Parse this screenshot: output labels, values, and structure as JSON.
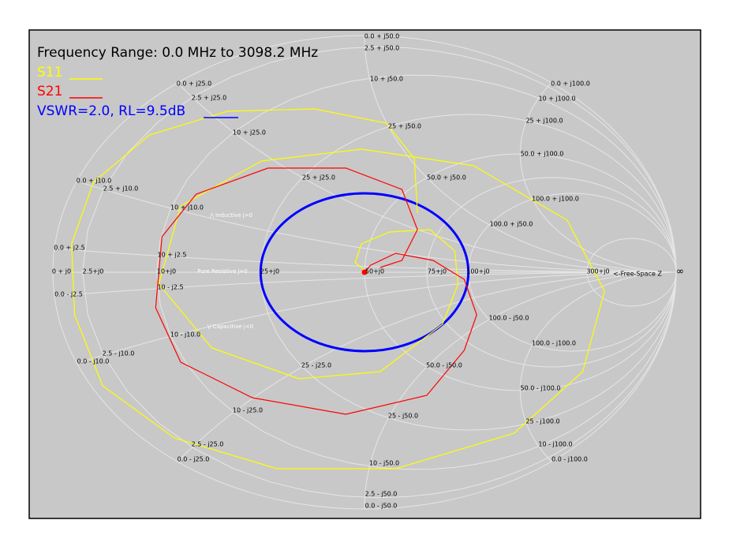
{
  "chart_data": {
    "type": "smith",
    "title": "Frequency Range: 0.0 MHz to 3098.2 MHz",
    "series": [
      {
        "name": "S11",
        "color": "#ffff00",
        "re": [
          0.01,
          -0.03,
          -0.01,
          0.08,
          0.21,
          0.29,
          0.3,
          0.25,
          0.05,
          -0.21,
          -0.49,
          -0.66,
          -0.59,
          -0.33,
          -0.01,
          0.35,
          0.65,
          0.77,
          0.7,
          0.48,
          0.1,
          -0.28,
          -0.61,
          -0.84,
          -0.93,
          -0.94,
          -0.87,
          -0.69,
          -0.44,
          -0.16,
          0.07,
          0.16,
          0.17
        ],
        "im": [
          0,
          0.04,
          0.12,
          0.17,
          0.18,
          0.09,
          -0.05,
          -0.22,
          -0.42,
          -0.45,
          -0.32,
          -0.05,
          0.28,
          0.47,
          0.52,
          0.45,
          0.22,
          -0.08,
          -0.42,
          -0.68,
          -0.83,
          -0.83,
          -0.7,
          -0.48,
          -0.18,
          0.12,
          0.38,
          0.58,
          0.68,
          0.69,
          0.63,
          0.48,
          0.25
        ]
      },
      {
        "name": "S21",
        "color": "#ff0000",
        "re": [
          0,
          0.02,
          0.1,
          0.22,
          0.32,
          0.36,
          0.32,
          0.2,
          -0.06,
          -0.36,
          -0.59,
          -0.67,
          -0.65,
          -0.54,
          -0.31,
          -0.06,
          0.12,
          0.17,
          0.12,
          0.05
        ],
        "im": [
          0,
          0.03,
          0.08,
          0.05,
          -0.03,
          -0.18,
          -0.33,
          -0.52,
          -0.6,
          -0.53,
          -0.38,
          -0.15,
          0.15,
          0.33,
          0.44,
          0.44,
          0.35,
          0.18,
          0.05,
          0.02
        ]
      }
    ],
    "vswr": {
      "label": "VSWR=2.0, RL=9.5dB",
      "value": 2.0,
      "color": "#0000ff"
    },
    "grid_labels": [
      "0.0 + j50.0",
      "2.5 + j50.0",
      "10 + j50.0",
      "25 + j50.0",
      "50.0 + j50.0",
      "100.0 + j50.0",
      "0.0 + j100.0",
      "10 + j100.0",
      "25 + j100.0",
      "50.0 + j100.0",
      "100.0 + j100.0",
      "0.0 + j25.0",
      "2.5 + j25.0",
      "10 + j25.0",
      "25 + j25.0",
      "0.0 + j10.0",
      "2.5 + j10.0",
      "10 + j10.0",
      "0.0 + j2.5",
      "10 + j2.5",
      "0 + j0",
      "2.5+j0",
      "10+j0",
      "25+j0",
      "50+j0",
      "75+j0",
      "100+j0",
      "300+j0",
      "0.0 - j2.5",
      "10 - j2.5",
      "100.0 - j50.0",
      "10 - j10.0",
      "2.5 - j10.0",
      "0.0 - j10.0",
      "100.0 - j100.0",
      "25 - j25.0",
      "50.0 - j50.0",
      "50.0 - j100.0",
      "10 - j25.0",
      "25 - j50.0",
      "25 - j100.0",
      "10 - j100.0",
      "2.5 - j25.0",
      "0.0 - j25.0",
      "0.0 - j100.0",
      "10 - j50.0",
      "2.5 - j50.0",
      "0.0 - j50.0"
    ],
    "annotations": [
      "/\\ Inductive j>0",
      "Pure Resistive j=0",
      "\\/ Capacitive j<0",
      "<-Free-Space Z",
      "∞"
    ]
  }
}
